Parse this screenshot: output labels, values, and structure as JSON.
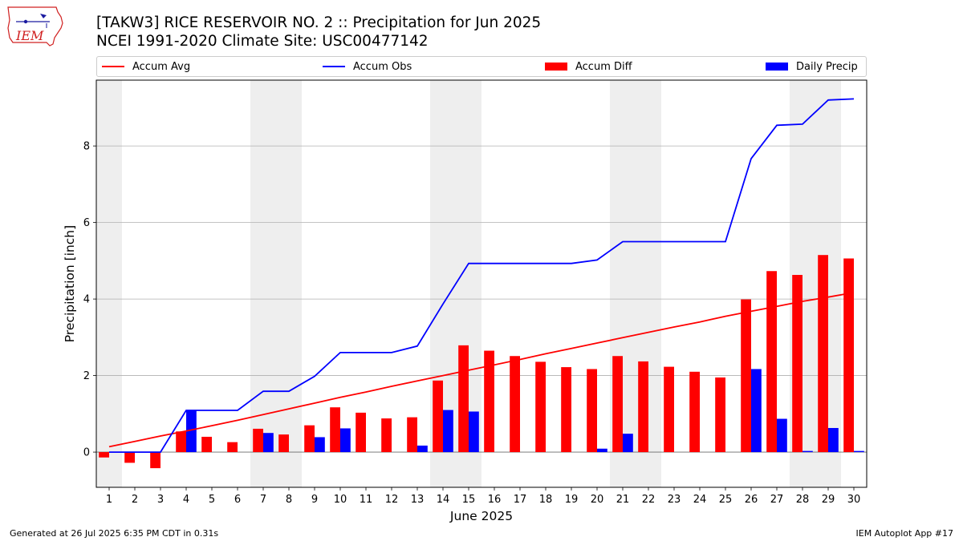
{
  "header": {
    "title_line1": "[TAKW3] RICE RESERVOIR NO. 2 :: Precipitation for Jun 2025",
    "title_line2": "NCEI 1991-2020 Climate Site: USC00477142"
  },
  "logo": {
    "text": "IEM",
    "icon": "iowa-state-outline-logo-icon"
  },
  "footer": {
    "left": "Generated at 26 Jul 2025 6:35 PM CDT in 0.31s",
    "right": "IEM Autoplot App #17"
  },
  "colors": {
    "accum_avg": "#ff0000",
    "accum_obs": "#0000ff",
    "accum_diff": "#ff0000",
    "daily_precip": "#0000ff",
    "weekend_shade": "#eeeeee",
    "grid": "#b0b0b0"
  },
  "chart_data": {
    "type": "bar",
    "xlabel": "June 2025",
    "ylabel": "Precipitation [inch]",
    "ylim": [
      -0.92,
      9.72
    ],
    "yticks": [
      0,
      2,
      4,
      6,
      8
    ],
    "xlim": [
      0.5,
      30.5
    ],
    "grid": "horizontal",
    "legend_position": "top, outside plot",
    "categories": [
      "1",
      "2",
      "3",
      "4",
      "5",
      "6",
      "7",
      "8",
      "9",
      "10",
      "11",
      "12",
      "13",
      "14",
      "15",
      "16",
      "17",
      "18",
      "19",
      "20",
      "21",
      "22",
      "23",
      "24",
      "25",
      "26",
      "27",
      "28",
      "29",
      "30"
    ],
    "shaded_days": [
      1,
      7,
      8,
      14,
      15,
      21,
      22,
      28,
      29
    ],
    "series": [
      {
        "name": "Accum Avg",
        "kind": "line",
        "values": [
          0.14,
          0.28,
          0.42,
          0.55,
          0.69,
          0.83,
          0.98,
          1.13,
          1.28,
          1.43,
          1.57,
          1.72,
          1.86,
          2.0,
          2.14,
          2.28,
          2.42,
          2.57,
          2.71,
          2.85,
          2.99,
          3.13,
          3.27,
          3.4,
          3.55,
          3.68,
          3.81,
          3.94,
          4.05,
          4.17
        ]
      },
      {
        "name": "Accum Obs",
        "kind": "line",
        "values": [
          0.0,
          0.0,
          0.0,
          1.09,
          1.09,
          1.09,
          1.59,
          1.59,
          1.98,
          2.6,
          2.6,
          2.6,
          2.77,
          3.87,
          4.93,
          4.93,
          4.93,
          4.93,
          4.93,
          5.02,
          5.5,
          5.5,
          5.5,
          5.5,
          5.5,
          7.67,
          8.54,
          8.57,
          9.2,
          9.23
        ]
      },
      {
        "name": "Accum Diff",
        "kind": "bar",
        "values": [
          -0.14,
          -0.28,
          -0.42,
          0.54,
          0.4,
          0.26,
          0.61,
          0.46,
          0.7,
          1.17,
          1.03,
          0.88,
          0.91,
          1.87,
          2.79,
          2.65,
          2.51,
          2.36,
          2.22,
          2.17,
          2.51,
          2.37,
          2.23,
          2.1,
          1.95,
          3.99,
          4.73,
          4.63,
          5.15,
          5.06
        ]
      },
      {
        "name": "Daily Precip",
        "kind": "bar",
        "values": [
          0.0,
          0.0,
          0.0,
          1.09,
          0.0,
          0.0,
          0.5,
          0.0,
          0.39,
          0.62,
          0.0,
          0.0,
          0.17,
          1.1,
          1.06,
          0.0,
          0.0,
          0.0,
          0.0,
          0.09,
          0.48,
          0.0,
          0.0,
          0.0,
          0.0,
          2.17,
          0.87,
          0.03,
          0.63,
          0.03
        ]
      }
    ]
  }
}
